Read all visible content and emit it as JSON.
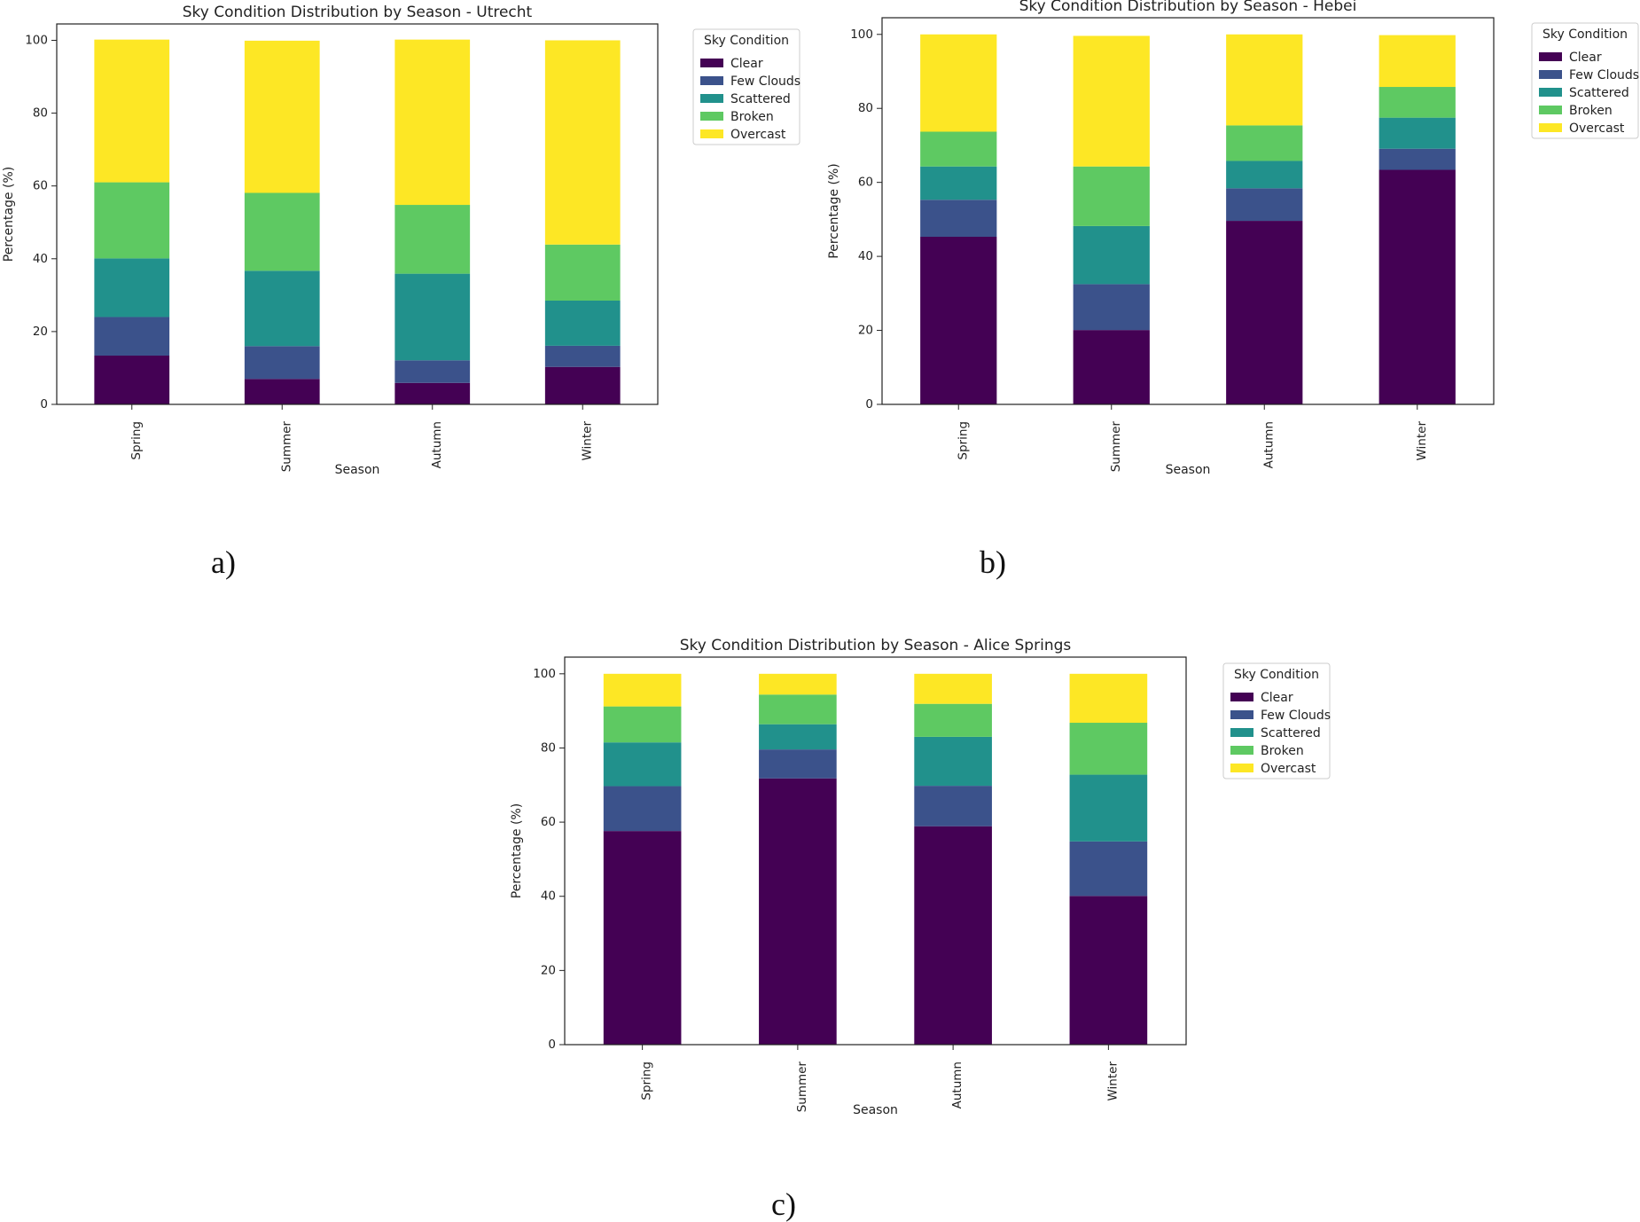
{
  "chart_data": [
    {
      "type": "bar",
      "stacked": true,
      "panel_label": "a)",
      "title": "Sky Condition Distribution by Season - Utrecht",
      "xlabel": "Season",
      "ylabel": "Percentage (%)",
      "ylim": [
        0,
        104.5
      ],
      "yticks": [
        0,
        20,
        40,
        60,
        80,
        100
      ],
      "categories": [
        "Spring",
        "Summer",
        "Autumn",
        "Winter"
      ],
      "legend_title": "Sky Condition",
      "legend_position": "outside-top-right",
      "series": [
        {
          "name": "Clear",
          "color": "#440154",
          "values": [
            13.4,
            7.0,
            5.9,
            10.3
          ]
        },
        {
          "name": "Few Clouds",
          "color": "#3b528b",
          "values": [
            10.6,
            9.0,
            6.2,
            5.8
          ]
        },
        {
          "name": "Scattered",
          "color": "#21918c",
          "values": [
            16.1,
            20.7,
            23.8,
            12.4
          ]
        },
        {
          "name": "Broken",
          "color": "#5ec962",
          "values": [
            20.9,
            21.4,
            18.9,
            15.4
          ]
        },
        {
          "name": "Overcast",
          "color": "#fde725",
          "values": [
            39.2,
            41.8,
            45.4,
            56.1
          ]
        }
      ]
    },
    {
      "type": "bar",
      "stacked": true,
      "panel_label": "b)",
      "title": "Sky Condition Distribution by Season - Hebei",
      "xlabel": "Season",
      "ylabel": "Percentage (%)",
      "ylim": [
        0,
        104.5
      ],
      "yticks": [
        0,
        20,
        40,
        60,
        80,
        100
      ],
      "categories": [
        "Spring",
        "Summer",
        "Autumn",
        "Winter"
      ],
      "legend_title": "Sky Condition",
      "legend_position": "outside-top-right",
      "series": [
        {
          "name": "Clear",
          "color": "#440154",
          "values": [
            45.3,
            20.1,
            49.6,
            63.4
          ]
        },
        {
          "name": "Few Clouds",
          "color": "#3b528b",
          "values": [
            10.0,
            12.4,
            8.8,
            5.7
          ]
        },
        {
          "name": "Scattered",
          "color": "#21918c",
          "values": [
            9.0,
            15.7,
            7.4,
            8.4
          ]
        },
        {
          "name": "Broken",
          "color": "#5ec962",
          "values": [
            9.4,
            16.1,
            9.6,
            8.3
          ]
        },
        {
          "name": "Overcast",
          "color": "#fde725",
          "values": [
            26.3,
            35.3,
            24.6,
            14.0
          ]
        }
      ]
    },
    {
      "type": "bar",
      "stacked": true,
      "panel_label": "c)",
      "title": "Sky Condition Distribution by Season - Alice Springs",
      "xlabel": "Season",
      "ylabel": "Percentage (%)",
      "ylim": [
        0,
        104.5
      ],
      "yticks": [
        0,
        20,
        40,
        60,
        80,
        100
      ],
      "categories": [
        "Spring",
        "Summer",
        "Autumn",
        "Winter"
      ],
      "legend_title": "Sky Condition",
      "legend_position": "outside-top-right",
      "series": [
        {
          "name": "Clear",
          "color": "#440154",
          "values": [
            57.6,
            71.8,
            58.9,
            40.1
          ]
        },
        {
          "name": "Few Clouds",
          "color": "#3b528b",
          "values": [
            12.1,
            7.8,
            10.9,
            14.7
          ]
        },
        {
          "name": "Scattered",
          "color": "#21918c",
          "values": [
            11.8,
            6.8,
            13.2,
            18.0
          ]
        },
        {
          "name": "Broken",
          "color": "#5ec962",
          "values": [
            9.7,
            8.0,
            8.9,
            14.0
          ]
        },
        {
          "name": "Overcast",
          "color": "#fde725",
          "values": [
            8.8,
            5.6,
            8.1,
            13.2
          ]
        }
      ]
    }
  ]
}
